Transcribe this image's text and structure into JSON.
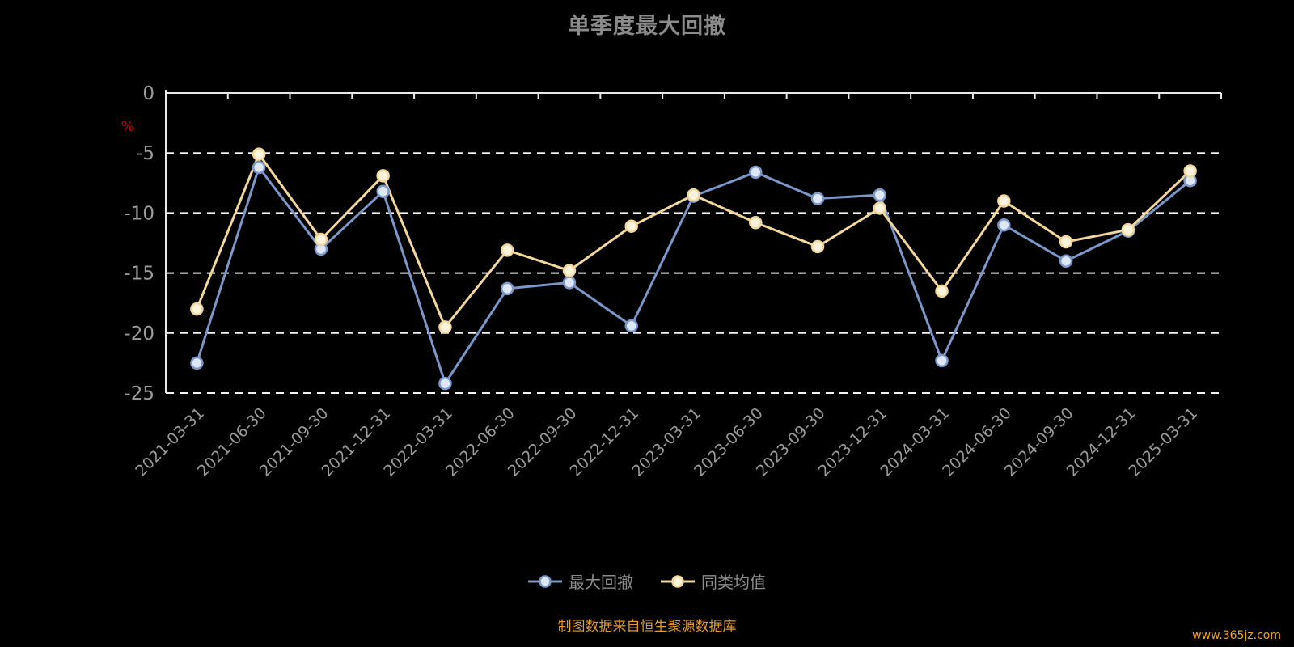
{
  "page": {
    "title": "单季度最大回撤",
    "footer_note": "制图数据来自恒生聚源数据库",
    "watermark": "www.365jz.com"
  },
  "colors": {
    "background": "#000000",
    "title": "#8a8a8a",
    "axis_line": "#e8e8e8",
    "grid_line": "#ffffff",
    "axis_label": "#9a9a9a",
    "unit_label": "#cc0000",
    "series1_line": "#7b96c9",
    "series1_fill": "#dde7f8",
    "series2_line": "#f2d79c",
    "series2_fill": "#fcf3dd",
    "legend_text": "#8c8c8c",
    "footer_text": "#e09a2f"
  },
  "chart_data": {
    "type": "line",
    "title": "单季度最大回撤",
    "unit": "%",
    "xlabel": "",
    "ylabel": "%",
    "ylim": [
      -25,
      0
    ],
    "yticks": [
      0,
      -5,
      -10,
      -15,
      -20,
      -25
    ],
    "grid": true,
    "legend_position": "bottom",
    "categories": [
      "2021-03-31",
      "2021-06-30",
      "2021-09-30",
      "2021-12-31",
      "2022-03-31",
      "2022-06-30",
      "2022-09-30",
      "2022-12-31",
      "2023-03-31",
      "2023-06-30",
      "2023-09-30",
      "2023-12-31",
      "2024-03-31",
      "2024-06-30",
      "2024-09-30",
      "2024-12-31",
      "2025-03-31"
    ],
    "series": [
      {
        "name": "最大回撤",
        "values": [
          -22.5,
          -6.2,
          -13.0,
          -8.2,
          -24.2,
          -16.3,
          -15.8,
          -19.4,
          -8.6,
          -6.6,
          -8.8,
          -8.5,
          -22.3,
          -11.0,
          -14.0,
          -11.5,
          -7.3
        ]
      },
      {
        "name": "同类均值",
        "values": [
          -18.0,
          -5.1,
          -12.2,
          -6.9,
          -19.5,
          -13.1,
          -14.8,
          -11.1,
          -8.5,
          -10.8,
          -12.8,
          -9.6,
          -16.5,
          -9.0,
          -12.4,
          -11.4,
          -6.5
        ]
      }
    ]
  }
}
